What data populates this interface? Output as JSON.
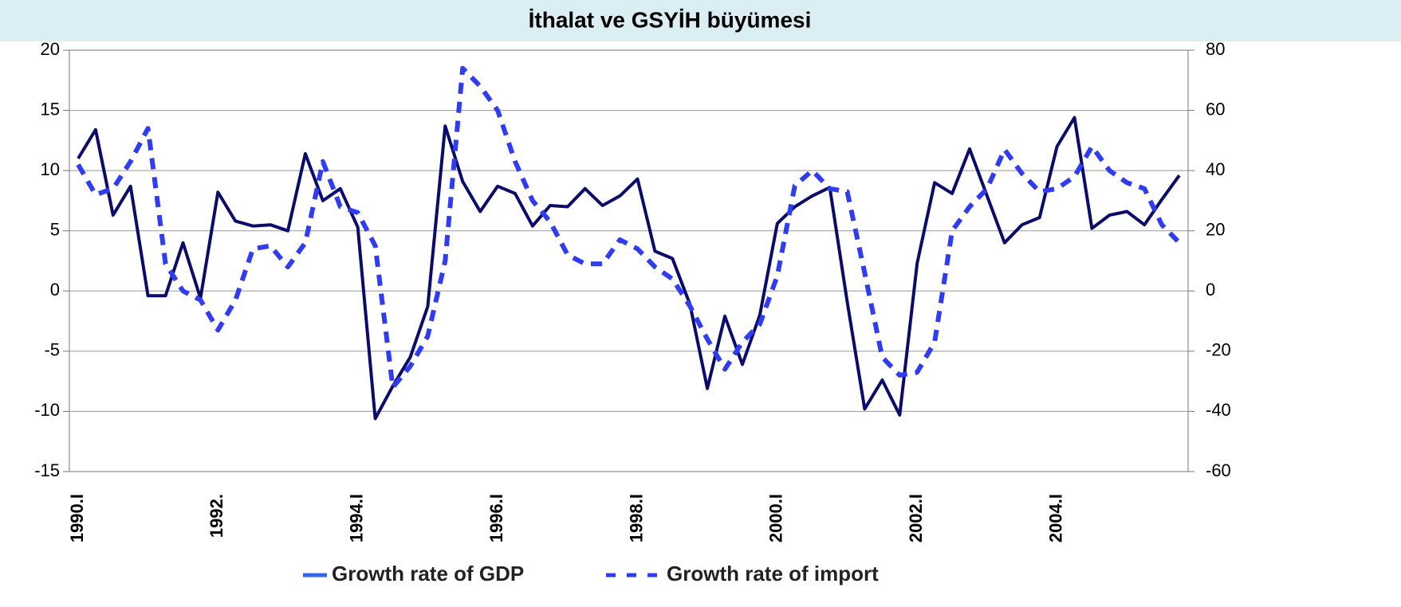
{
  "chart_data": {
    "type": "line",
    "title": "İthalat ve GSYİH büyümesi",
    "categories": [
      "1990.I",
      null,
      null,
      null,
      null,
      null,
      null,
      null,
      "1992.",
      null,
      null,
      null,
      null,
      null,
      null,
      null,
      "1994.I",
      null,
      null,
      null,
      null,
      null,
      null,
      null,
      "1996.I",
      null,
      null,
      null,
      null,
      null,
      null,
      null,
      "1998.I",
      null,
      null,
      null,
      null,
      null,
      null,
      null,
      "2000.I",
      null,
      null,
      null,
      null,
      null,
      null,
      null,
      "2002.I",
      null,
      null,
      null,
      null,
      null,
      null,
      null,
      "2004.I",
      null,
      null,
      null,
      null,
      null,
      null,
      null
    ],
    "series": [
      {
        "name": "Growth rate of GDP",
        "color": "#0b0b6b",
        "axis": "y",
        "values": [
          11,
          13.4,
          6.3,
          8.7,
          -0.4,
          -0.4,
          4.0,
          -0.6,
          8.2,
          5.8,
          5.4,
          5.5,
          5.0,
          11.4,
          7.5,
          8.5,
          5.3,
          -10.6,
          -7.9,
          -5.5,
          -1.3,
          13.7,
          9.1,
          6.6,
          8.7,
          8.1,
          5.4,
          7.1,
          7.0,
          8.5,
          7.1,
          7.9,
          9.3,
          3.3,
          2.7,
          -1.1,
          -8.1,
          -2.1,
          -6.1,
          -2.0,
          5.6,
          7.0,
          7.9,
          8.6,
          -0.9,
          -9.8,
          -7.4,
          -10.3,
          2.3,
          9.0,
          8.1,
          11.8,
          7.9,
          4.0,
          5.5,
          6.1,
          12.0,
          14.4,
          5.2,
          6.3,
          6.6,
          5.5,
          7.6,
          9.6
        ]
      },
      {
        "name": "Growth rate of import",
        "color": "#2f3cf0",
        "axis": "y2",
        "values": [
          42,
          32,
          34,
          43,
          54,
          9,
          0,
          -3,
          -13,
          -3,
          14,
          15,
          8,
          16,
          43,
          28,
          26,
          15,
          -32,
          -25,
          -15,
          10,
          74,
          68,
          60,
          43,
          30,
          23,
          12,
          9,
          9,
          17,
          14,
          8,
          4,
          -5,
          -16,
          -26,
          -17,
          -11,
          5,
          35,
          40,
          34,
          33,
          6,
          -22,
          -28,
          -27,
          -17,
          20,
          28,
          34,
          47,
          39,
          33,
          34,
          38,
          48,
          40,
          36,
          34,
          22,
          16
        ]
      }
    ],
    "ylim": [
      -15,
      20
    ],
    "yticks": [
      -15,
      -10,
      -5,
      0,
      5,
      10,
      15,
      20
    ],
    "y2lim": [
      -60,
      80
    ],
    "y2ticks": [
      -60,
      -40,
      -20,
      0,
      20,
      40,
      60,
      80
    ],
    "grid": true,
    "legend": "bottom"
  }
}
